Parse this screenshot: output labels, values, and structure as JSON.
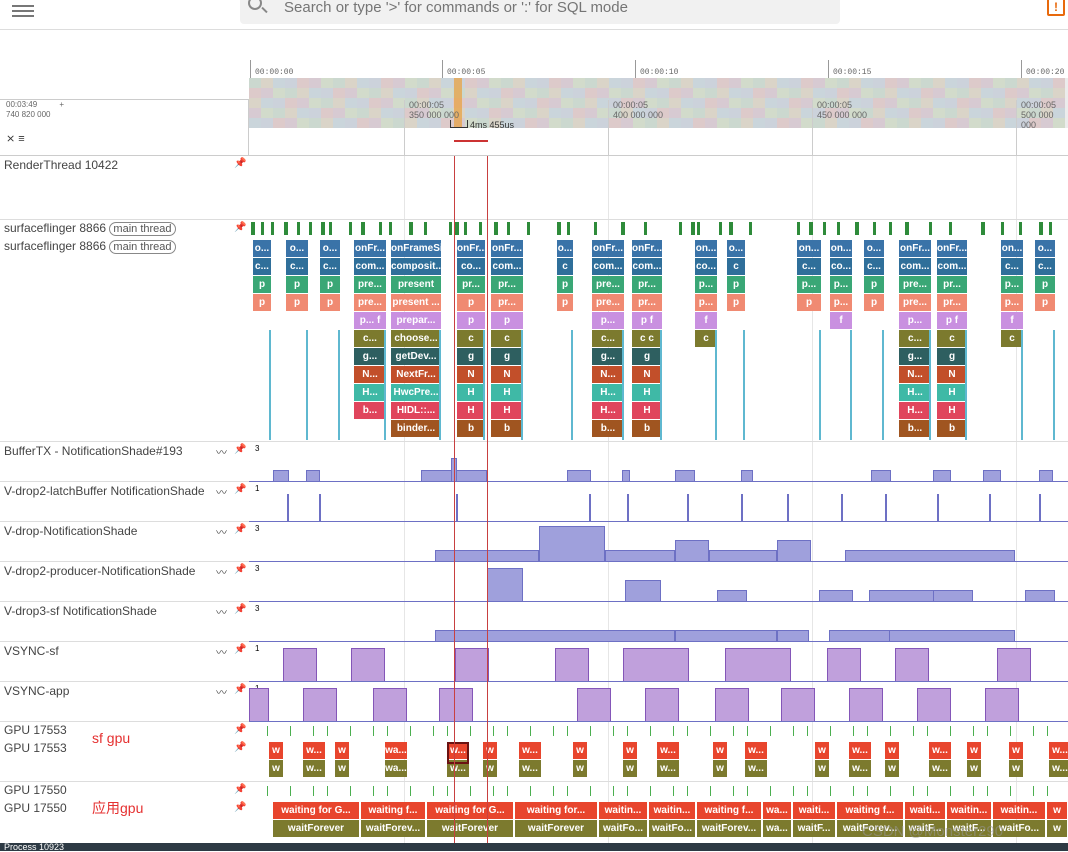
{
  "topbar": {
    "search_placeholder": "Search or type '>' for commands or ':' for SQL mode",
    "warn_symbol": "!"
  },
  "overview": {
    "ticks": [
      "00:00:00",
      "00:00:05",
      "00:00:10",
      "00:00:15",
      "00:00:20"
    ]
  },
  "ruler": {
    "left_time": "00:03:49",
    "left_ns": "740 820 000",
    "plus": "+",
    "ticks": [
      {
        "t": "00:00:05",
        "ns": "350 000 000"
      },
      {
        "t": "00:00:05",
        "ns": "400 000 000"
      },
      {
        "t": "00:00:05",
        "ns": "450 000 000"
      },
      {
        "t": "00:00:05",
        "ns": "500 000 000"
      }
    ],
    "measure": "4ms 455us"
  },
  "tracks": {
    "render_thread": "RenderThread 10422",
    "sf1": "surfaceflinger 8866",
    "sf2": "surfaceflinger 8866",
    "main_thread": "main thread",
    "buffertx": "BufferTX - NotificationShade#193",
    "latch": "V-drop2-latchBuffer NotificationShade",
    "vdrop": "V-drop-NotificationShade",
    "producer": "V-drop2-producer-NotificationShade",
    "sf3": "V-drop3-sf NotificationShade",
    "vsync_sf": "VSYNC-sf",
    "vsync_app": "VSYNC-app",
    "gpu1a": "GPU 17553",
    "gpu1b": "GPU 17553",
    "gpu2a": "GPU 17550",
    "gpu2b": "GPU 17550",
    "max3": "3",
    "max1": "1"
  },
  "annotations": {
    "sf_gpu": "sf gpu",
    "app_gpu": "应用gpu"
  },
  "sf_columns": [
    {
      "x": 4,
      "w": 18,
      "l": [
        "o...",
        "c...",
        "p",
        "p",
        "",
        "",
        "",
        "",
        "",
        ""
      ]
    },
    {
      "x": 37,
      "w": 22,
      "l": [
        "o...",
        "c...",
        "p",
        "p",
        "",
        "",
        "",
        "",
        "",
        ""
      ]
    },
    {
      "x": 71,
      "w": 20,
      "l": [
        "o...",
        "c...",
        "p",
        "p",
        "",
        "",
        "",
        "",
        "",
        ""
      ]
    },
    {
      "x": 105,
      "w": 32,
      "l": [
        "onFr...",
        "com...",
        "pre...",
        "pre...",
        "p...  f",
        "c...",
        "g...",
        "N...",
        "H...",
        "b..."
      ]
    },
    {
      "x": 142,
      "w": 50,
      "l": [
        "onFrameSi...",
        "composit...",
        "present",
        "present ...",
        "prepar...",
        "choose...",
        "getDev...",
        "NextFr...",
        "HwcPre...",
        "HIDL::...",
        "binder..."
      ]
    },
    {
      "x": 208,
      "w": 28,
      "l": [
        "onFr...",
        "co...",
        "pr...",
        "p",
        "p",
        "c",
        "g",
        "N",
        "H",
        "H",
        "b"
      ]
    },
    {
      "x": 242,
      "w": 32,
      "l": [
        "onFr...",
        "com...",
        "pr...",
        "pr...",
        "p",
        "c",
        "g",
        "N",
        "H",
        "H",
        "b"
      ]
    },
    {
      "x": 308,
      "w": 16,
      "l": [
        "o...",
        "c",
        "p",
        "p",
        "",
        "",
        "",
        "",
        "",
        ""
      ]
    },
    {
      "x": 343,
      "w": 32,
      "l": [
        "onFr...",
        "com...",
        "pre...",
        "pre...",
        "p...",
        "c...",
        "g...",
        "N...",
        "H...",
        "H...",
        "b..."
      ]
    },
    {
      "x": 383,
      "w": 30,
      "l": [
        "onFr...",
        "com...",
        "pr...",
        "pr...",
        "p  f",
        "c  c",
        "g",
        "N",
        "H",
        "H",
        "b"
      ]
    },
    {
      "x": 446,
      "w": 22,
      "l": [
        "on...",
        "co...",
        "p...",
        "p...",
        "f",
        "c",
        "",
        "",
        "",
        ""
      ]
    },
    {
      "x": 478,
      "w": 18,
      "l": [
        "o...",
        "c",
        "p",
        "p",
        "",
        "",
        "",
        "",
        "",
        ""
      ]
    },
    {
      "x": 548,
      "w": 24,
      "l": [
        "on...",
        "c...",
        "p...",
        "p",
        "",
        "",
        "",
        "",
        "",
        ""
      ]
    },
    {
      "x": 581,
      "w": 22,
      "l": [
        "on...",
        "co...",
        "p...",
        "p...",
        "f",
        "",
        "",
        "",
        "",
        ""
      ]
    },
    {
      "x": 615,
      "w": 20,
      "l": [
        "o...",
        "c...",
        "p",
        "p",
        "",
        "",
        "",
        "",
        "",
        ""
      ]
    },
    {
      "x": 650,
      "w": 32,
      "l": [
        "onFr...",
        "com...",
        "pre...",
        "pre...",
        "p...",
        "c...",
        "g...",
        "N...",
        "H...",
        "H...",
        "b..."
      ]
    },
    {
      "x": 688,
      "w": 30,
      "l": [
        "onFr...",
        "com...",
        "pr...",
        "pr...",
        "p  f",
        "c",
        "g",
        "N",
        "H",
        "H",
        "b"
      ]
    },
    {
      "x": 752,
      "w": 22,
      "l": [
        "on...",
        "c...",
        "p...",
        "p...",
        "f",
        "c",
        "",
        "",
        "",
        ""
      ]
    },
    {
      "x": 786,
      "w": 20,
      "l": [
        "o...",
        "c...",
        "p",
        "p",
        "",
        "",
        "",
        "",
        "",
        ""
      ]
    }
  ],
  "gpu_w": [
    "w",
    "w...",
    "w",
    "wa...",
    "w...",
    "w",
    "w...",
    "w",
    "w",
    "w...",
    "w",
    "w...",
    "w",
    "w...",
    "w",
    "w...",
    "w",
    "w",
    "w...",
    "w",
    "w"
  ],
  "gpu_w2": [
    "w",
    "w...",
    "w",
    "wa...",
    "w...",
    "w",
    "w...",
    "w",
    "w",
    "w...",
    "w",
    "w...",
    "w",
    "w...",
    "w",
    "w...",
    "w",
    "w",
    "w...",
    "w",
    "w"
  ],
  "app_gpu": [
    {
      "x": 24,
      "w": 86,
      "a": "waiting for G...",
      "b": "waitForever"
    },
    {
      "x": 112,
      "w": 64,
      "a": "waiting f...",
      "b": "waitForev..."
    },
    {
      "x": 178,
      "w": 86,
      "a": "waiting for G...",
      "b": "waitForever"
    },
    {
      "x": 266,
      "w": 82,
      "a": "waiting for...",
      "b": "waitForever"
    },
    {
      "x": 350,
      "w": 48,
      "a": "waitin...",
      "b": "waitFo..."
    },
    {
      "x": 400,
      "w": 46,
      "a": "waitin...",
      "b": "waitFo..."
    },
    {
      "x": 448,
      "w": 64,
      "a": "waiting f...",
      "b": "waitForev..."
    },
    {
      "x": 514,
      "w": 28,
      "a": "wa...",
      "b": "wa..."
    },
    {
      "x": 544,
      "w": 42,
      "a": "waiti...",
      "b": "waitF..."
    },
    {
      "x": 588,
      "w": 66,
      "a": "waiting f...",
      "b": "waitForev..."
    },
    {
      "x": 656,
      "w": 40,
      "a": "waiti...",
      "b": "waitF..."
    },
    {
      "x": 698,
      "w": 44,
      "a": "waitin...",
      "b": "waitF..."
    },
    {
      "x": 744,
      "w": 52,
      "a": "waitin...",
      "b": "waitFo..."
    },
    {
      "x": 798,
      "w": 20,
      "a": "w",
      "b": "w"
    }
  ],
  "bottom": {
    "label": "Process 10923"
  },
  "watermark": "CSDN @Monster290"
}
